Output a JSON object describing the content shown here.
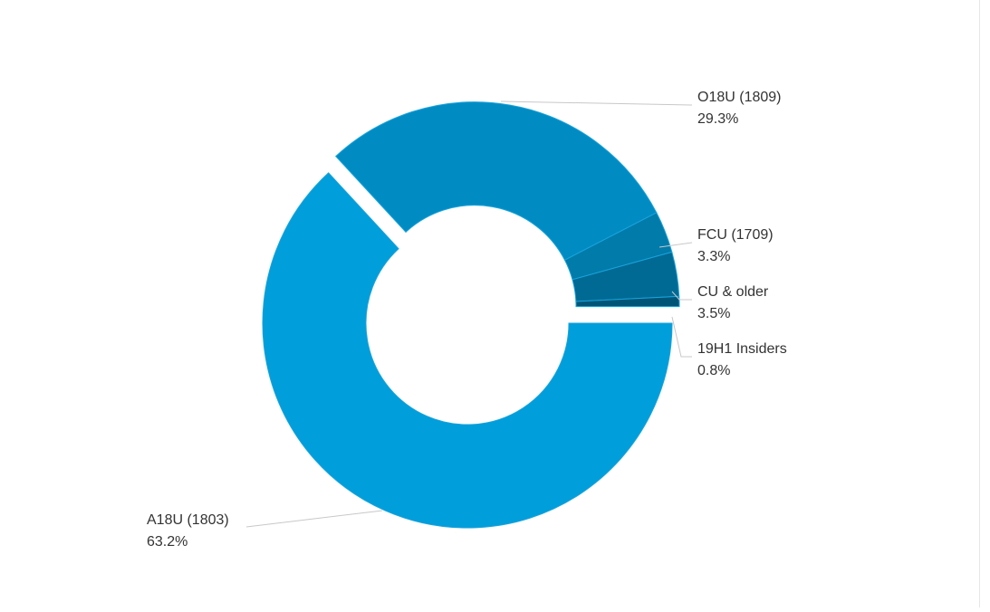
{
  "chart_data": {
    "type": "pie",
    "style": "donut",
    "series": [
      {
        "label": "A18U (1803)",
        "pct_label": "63.2%",
        "value": 63.2,
        "color": "#009EDA",
        "exploded": false
      },
      {
        "label": "O18U (1809)",
        "pct_label": "29.3%",
        "value": 29.3,
        "color": "#008CC3",
        "exploded": true
      },
      {
        "label": "FCU (1709)",
        "pct_label": "3.3%",
        "value": 3.3,
        "color": "#007BAA",
        "exploded": true
      },
      {
        "label": "CU & older",
        "pct_label": "3.5%",
        "value": 3.5,
        "color": "#006A94",
        "exploded": true
      },
      {
        "label": "19H1 Insiders",
        "pct_label": "0.8%",
        "value": 0.8,
        "color": "#005577",
        "exploded": true
      }
    ]
  }
}
